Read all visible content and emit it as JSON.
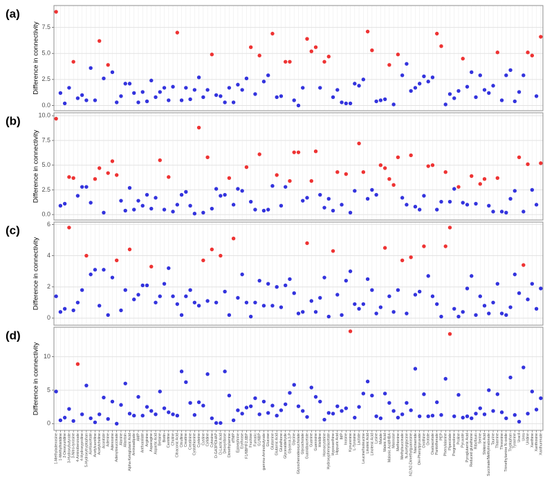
{
  "chart_data": [
    {
      "type": "scatter",
      "panel_label": "(a)",
      "y_label": "Difference in connectivity",
      "grid": true,
      "ylim": [
        -0.5,
        9.6
      ],
      "yticks": [
        {
          "value": 0,
          "label": "0.0"
        },
        {
          "value": 2.5,
          "label": "2.5"
        },
        {
          "value": 5,
          "label": "5.0"
        },
        {
          "value": 7.5,
          "label": "7.5"
        }
      ],
      "values": [
        9.0,
        1.2,
        0.2,
        1.7,
        4.2,
        0.7,
        1.0,
        0.5,
        3.6,
        0.5,
        6.2,
        2.6,
        3.9,
        3.2,
        0.3,
        0.9,
        2.1,
        2.1,
        1.2,
        0.3,
        1.3,
        0.4,
        2.4,
        0.8,
        1.3,
        1.7,
        0.5,
        1.8,
        7.0,
        0.5,
        1.7,
        0.6,
        1.5,
        2.7,
        0.8,
        1.5,
        4.9,
        1.0,
        0.9,
        0.3,
        1.7,
        0.3,
        2.0,
        1.5,
        2.6,
        5.6,
        1.1,
        4.8,
        2.3,
        2.9,
        6.9,
        0.8,
        0.9,
        4.2,
        4.2,
        0.5,
        0.0,
        1.7,
        6.4,
        5.2,
        5.6,
        1.7,
        4.2,
        4.7,
        0.8,
        1.5,
        0.3,
        0.2,
        0.2,
        2.1,
        1.9,
        2.5,
        7.1,
        5.3,
        0.4,
        0.5,
        0.6,
        3.9,
        0.1,
        4.9,
        2.9,
        4.0,
        1.4,
        1.7,
        2.1,
        2.8,
        2.3,
        2.7,
        6.9,
        5.7,
        0.1,
        1.1,
        0.7,
        1.4,
        4.5,
        1.8,
        3.2,
        0.8,
        2.9,
        1.5,
        1.2,
        1.9,
        5.1,
        0.5,
        2.9,
        3.4,
        0.4,
        1.3,
        2.9,
        5.1,
        4.8,
        0.9,
        6.6
      ],
      "colors": [
        "#e33",
        "#33d",
        "#33d",
        "#33d",
        "#e33",
        "#33d",
        "#33d",
        "#33d",
        "#33d",
        "#33d",
        "#e33",
        "#33d",
        "#e33",
        "#33d",
        "#33d",
        "#33d",
        "#33d",
        "#33d",
        "#33d",
        "#33d",
        "#33d",
        "#33d",
        "#33d",
        "#33d",
        "#33d",
        "#33d",
        "#33d",
        "#33d",
        "#e33",
        "#33d",
        "#33d",
        "#33d",
        "#33d",
        "#33d",
        "#33d",
        "#33d",
        "#e33",
        "#33d",
        "#33d",
        "#33d",
        "#33d",
        "#33d",
        "#33d",
        "#33d",
        "#33d",
        "#e33",
        "#33d",
        "#e33",
        "#33d",
        "#33d",
        "#e33",
        "#33d",
        "#33d",
        "#e33",
        "#e33",
        "#33d",
        "#33d",
        "#33d",
        "#e33",
        "#e33",
        "#e33",
        "#33d",
        "#e33",
        "#e33",
        "#33d",
        "#33d",
        "#33d",
        "#33d",
        "#33d",
        "#33d",
        "#33d",
        "#33d",
        "#e33",
        "#e33",
        "#33d",
        "#33d",
        "#33d",
        "#e33",
        "#33d",
        "#e33",
        "#33d",
        "#33d",
        "#33d",
        "#33d",
        "#33d",
        "#33d",
        "#33d",
        "#33d",
        "#e33",
        "#e33",
        "#33d",
        "#33d",
        "#33d",
        "#33d",
        "#e33",
        "#33d",
        "#33d",
        "#33d",
        "#33d",
        "#33d",
        "#33d",
        "#33d",
        "#e33",
        "#33d",
        "#33d",
        "#33d",
        "#33d",
        "#33d",
        "#33d",
        "#e33",
        "#e33",
        "#33d",
        "#e33"
      ]
    },
    {
      "type": "scatter",
      "panel_label": "(b)",
      "y_label": "Difference in connectivity",
      "grid": true,
      "ylim": [
        -0.55,
        10.3
      ],
      "yticks": [
        {
          "value": 0,
          "label": "0.0"
        },
        {
          "value": 2.5,
          "label": "2.5"
        },
        {
          "value": 5,
          "label": "5.0"
        },
        {
          "value": 7.5,
          "label": "7.5"
        },
        {
          "value": 10,
          "label": "10.0"
        }
      ],
      "values": [
        9.7,
        0.9,
        1.1,
        3.8,
        3.7,
        1.9,
        2.8,
        2.8,
        1.2,
        3.6,
        4.7,
        0.2,
        4.2,
        5.4,
        4.0,
        1.4,
        0.4,
        2.7,
        0.5,
        1.4,
        0.9,
        2.0,
        0.6,
        1.7,
        5.5,
        0.5,
        3.8,
        0.3,
        1.0,
        2.0,
        2.3,
        0.9,
        0.1,
        8.8,
        0.2,
        5.8,
        0.6,
        2.6,
        1.9,
        2.0,
        3.7,
        1.0,
        2.6,
        2.4,
        4.8,
        1.3,
        0.5,
        6.1,
        0.4,
        0.5,
        2.9,
        4.0,
        0.9,
        2.8,
        3.4,
        6.3,
        6.3,
        1.4,
        1.7,
        3.4,
        6.4,
        2.0,
        0.7,
        1.6,
        0.4,
        4.3,
        1.0,
        4.1,
        0.2,
        2.4,
        7.2,
        4.3,
        1.6,
        2.5,
        2.0,
        5.0,
        4.7,
        3.6,
        3.0,
        5.8,
        1.7,
        1.0,
        6.0,
        0.8,
        0.5,
        1.9,
        4.9,
        5.0,
        0.5,
        1.3,
        4.3,
        1.3,
        2.6,
        2.8,
        1.2,
        1.0,
        3.9,
        1.1,
        3.1,
        3.6,
        0.9,
        0.3,
        3.7,
        0.3,
        0.2,
        1.6,
        2.4,
        5.8,
        0.3,
        5.1,
        2.5,
        1.0,
        5.2
      ],
      "colors": [
        "#e33",
        "#33d",
        "#33d",
        "#e33",
        "#e33",
        "#33d",
        "#33d",
        "#33d",
        "#33d",
        "#e33",
        "#e33",
        "#33d",
        "#e33",
        "#e33",
        "#e33",
        "#33d",
        "#33d",
        "#33d",
        "#33d",
        "#33d",
        "#33d",
        "#33d",
        "#33d",
        "#33d",
        "#e33",
        "#33d",
        "#e33",
        "#33d",
        "#33d",
        "#33d",
        "#33d",
        "#33d",
        "#33d",
        "#e33",
        "#33d",
        "#e33",
        "#33d",
        "#33d",
        "#33d",
        "#33d",
        "#e33",
        "#33d",
        "#33d",
        "#33d",
        "#e33",
        "#33d",
        "#33d",
        "#e33",
        "#33d",
        "#33d",
        "#33d",
        "#e33",
        "#33d",
        "#33d",
        "#e33",
        "#e33",
        "#e33",
        "#33d",
        "#33d",
        "#e33",
        "#e33",
        "#33d",
        "#33d",
        "#33d",
        "#33d",
        "#e33",
        "#33d",
        "#e33",
        "#33d",
        "#33d",
        "#e33",
        "#e33",
        "#33d",
        "#33d",
        "#33d",
        "#e33",
        "#e33",
        "#e33",
        "#e33",
        "#e33",
        "#33d",
        "#33d",
        "#e33",
        "#33d",
        "#33d",
        "#33d",
        "#e33",
        "#e33",
        "#33d",
        "#33d",
        "#e33",
        "#33d",
        "#33d",
        "#e33",
        "#33d",
        "#33d",
        "#e33",
        "#33d",
        "#e33",
        "#e33",
        "#33d",
        "#33d",
        "#e33",
        "#33d",
        "#33d",
        "#33d",
        "#33d",
        "#e33",
        "#33d",
        "#e33",
        "#33d",
        "#33d",
        "#e33"
      ]
    },
    {
      "type": "scatter",
      "panel_label": "(c)",
      "y_label": "Difference in connectivity",
      "grid": true,
      "ylim": [
        -0.45,
        6.15
      ],
      "yticks": [
        0,
        2,
        4,
        6
      ],
      "values": [
        1.4,
        0.4,
        0.6,
        5.8,
        0.5,
        1.0,
        1.8,
        4.0,
        2.8,
        3.1,
        0.8,
        3.1,
        0.2,
        2.6,
        3.7,
        0.5,
        1.8,
        4.4,
        1.2,
        1.5,
        2.1,
        2.1,
        3.3,
        1.0,
        1.4,
        2.2,
        3.2,
        1.4,
        0.9,
        0.2,
        1.4,
        1.8,
        1.0,
        0.8,
        3.7,
        1.1,
        4.4,
        1.0,
        4.0,
        1.7,
        0.2,
        5.1,
        1.3,
        2.8,
        1.0,
        0.1,
        1.0,
        2.4,
        0.8,
        2.2,
        0.8,
        2.0,
        0.7,
        2.1,
        2.5,
        1.6,
        0.3,
        0.4,
        4.8,
        1.1,
        0.4,
        1.3,
        2.6,
        0.1,
        4.3,
        1.5,
        0.2,
        2.4,
        3.0,
        0.9,
        0.6,
        0.9,
        2.5,
        1.8,
        0.3,
        0.7,
        4.5,
        1.4,
        0.4,
        1.8,
        3.7,
        0.3,
        3.9,
        1.5,
        1.7,
        4.6,
        2.7,
        1.4,
        0.9,
        0.1,
        4.6,
        5.8,
        0.6,
        0.1,
        0.4,
        1.9,
        2.7,
        0.2,
        1.4,
        0.8,
        0.3,
        1.0,
        2.2,
        0.3,
        0.2,
        0.7,
        2.8,
        1.6,
        3.4,
        1.2,
        2.2,
        0.6,
        1.9
      ],
      "colors": [
        "#33d",
        "#33d",
        "#33d",
        "#e33",
        "#33d",
        "#33d",
        "#33d",
        "#e33",
        "#33d",
        "#33d",
        "#33d",
        "#33d",
        "#33d",
        "#33d",
        "#e33",
        "#33d",
        "#33d",
        "#e33",
        "#33d",
        "#33d",
        "#33d",
        "#33d",
        "#e33",
        "#33d",
        "#33d",
        "#33d",
        "#33d",
        "#33d",
        "#33d",
        "#33d",
        "#33d",
        "#33d",
        "#33d",
        "#33d",
        "#e33",
        "#33d",
        "#e33",
        "#33d",
        "#e33",
        "#33d",
        "#33d",
        "#e33",
        "#33d",
        "#33d",
        "#33d",
        "#33d",
        "#33d",
        "#33d",
        "#33d",
        "#33d",
        "#33d",
        "#33d",
        "#33d",
        "#33d",
        "#33d",
        "#33d",
        "#33d",
        "#33d",
        "#e33",
        "#33d",
        "#33d",
        "#33d",
        "#33d",
        "#33d",
        "#e33",
        "#33d",
        "#33d",
        "#33d",
        "#33d",
        "#33d",
        "#33d",
        "#33d",
        "#33d",
        "#33d",
        "#33d",
        "#33d",
        "#e33",
        "#33d",
        "#33d",
        "#33d",
        "#e33",
        "#33d",
        "#e33",
        "#33d",
        "#33d",
        "#e33",
        "#33d",
        "#33d",
        "#33d",
        "#33d",
        "#e33",
        "#e33",
        "#33d",
        "#33d",
        "#33d",
        "#33d",
        "#33d",
        "#33d",
        "#33d",
        "#33d",
        "#33d",
        "#33d",
        "#33d",
        "#33d",
        "#33d",
        "#33d",
        "#33d",
        "#33d",
        "#e33",
        "#33d",
        "#33d",
        "#33d",
        "#33d"
      ]
    },
    {
      "type": "scatter",
      "panel_label": "(d)",
      "y_label": "Difference in connectivity",
      "grid": true,
      "ylim": [
        -1,
        14.4
      ],
      "yticks": [
        0,
        5,
        10
      ],
      "categories": [
        "1-Methyladenosine",
        "1-Methylhistidine",
        "2-Deoxyuridine",
        "3-Hydroxybutyrate",
        "3-Nitro-tyrosine",
        "4-Aminobenzoate",
        "4-Hydroxyproline",
        "5-Hydroxytryptophan",
        "Acetoacetate",
        "Acetylcarnitine",
        "Acetylcholine",
        "Aconitate",
        "Adenine",
        "Adenosine",
        "Adenylosuccinate",
        "Alanine",
        "Allantoin",
        "Alpha-Ketoglutaric Acid",
        "Aminoadipate",
        "AMP",
        "Anthranilate",
        "Arginine",
        "Asparagine",
        "Aspartic Acid",
        "Betaine",
        "Biotin",
        "Carnitine",
        "Choline",
        "Citraconic Acid",
        "Citrulline",
        "Creatine",
        "Creatinine",
        "Cystathionine",
        "Cysteine",
        "Cystine",
        "Cytidine",
        "Cytosine",
        "D-GA3P/DHAP",
        "D-Lactic Acid",
        "Deoxyribose",
        "Dimethylamine",
        "dTMP",
        "Epinephrine",
        "Erythrose",
        "F1/6BP/F2,6BP",
        "Fructose",
        "Fumaric",
        "G1/6BP",
        "gamma-Aminobutyrate",
        "Glucose",
        "Glutamine",
        "Glutamic Acid",
        "Glutathione",
        "Glyceraldehyde",
        "Glycerol-3-P",
        "Glycine",
        "Glycochenodeoxycholate",
        "Glycocholate",
        "Guanidoacetate",
        "Guanine",
        "Guanosine",
        "Histidine",
        "Homocysteine",
        "Hydroxyphenylacetate",
        "Hypoxanthine",
        "Hippuric Acid",
        "IMP",
        "Inosine",
        "Kynurenine",
        "L-Tyrosine",
        "Lactate",
        "Leucine/Isoleucine",
        "Linoleic Acid",
        "Linolenic Acid",
        "Lysine",
        "Malate",
        "Maleic Acid",
        "Malonic Acid/HBA",
        "Mannose",
        "Methionine",
        "Methylsuccinate",
        "N-Acetylglycine",
        "N2,N2-Dimethylguanosine",
        "Niacinamide",
        "OH-Phenylpyruvate",
        "Ornithine",
        "Orotate",
        "Oxaloacetate",
        "Pantothenate",
        "PEP",
        "Phenylalanine",
        "Pipecolate",
        "Pregnenolone",
        "Proline",
        "Pyruvate",
        "Pyroglutamic Acid",
        "Reduced glutathione",
        "Riboflavin",
        "Serine",
        "Shikimic Acid",
        "Succinate/Methylmalonate",
        "Taurine",
        "Thiamine",
        "Threonine",
        "Trimethylamine N-oxide",
        "Tryptophan",
        "Tyramine",
        "Uracil",
        "Urea",
        "Uridine",
        "Xanthine",
        "Xanthosine",
        "Xanthurenate"
      ],
      "values": [
        4.8,
        0.5,
        0.9,
        2.2,
        0.4,
        8.9,
        1.4,
        5.7,
        0.8,
        0.2,
        1.4,
        3.9,
        0.7,
        3.3,
        0.0,
        2.8,
        6.0,
        1.5,
        1.2,
        4.0,
        1.2,
        2.5,
        1.9,
        1.4,
        4.8,
        2.3,
        1.7,
        1.4,
        1.2,
        7.8,
        6.2,
        3.1,
        1.3,
        3.2,
        2.7,
        7.4,
        0.8,
        0.1,
        0.1,
        7.8,
        4.2,
        0.5,
        2.0,
        1.5,
        2.4,
        2.6,
        3.8,
        1.4,
        3.3,
        1.6,
        2.7,
        1.2,
        2.0,
        2.9,
        4.6,
        5.8,
        2.6,
        1.9,
        1.0,
        5.4,
        4.0,
        3.3,
        0.6,
        1.6,
        1.5,
        2.6,
        1.9,
        2.3,
        13.8,
        0.9,
        2.5,
        4.5,
        6.3,
        4.2,
        1.1,
        0.8,
        4.5,
        3.1,
        1.9,
        0.9,
        1.4,
        3.1,
        2.0,
        8.2,
        1.1,
        4.4,
        1.1,
        1.2,
        3.2,
        1.3,
        6.7,
        13.4,
        1.1,
        4.3,
        0.9,
        1.1,
        0.8,
        1.5,
        2.3,
        1.4,
        5.0,
        1.9,
        4.4,
        1.7,
        0.8,
        6.9,
        1.3,
        0.3,
        8.4,
        1.5,
        4.8,
        2.1,
        3.8
      ],
      "colors": [
        "#33d",
        "#33d",
        "#33d",
        "#33d",
        "#33d",
        "#e33",
        "#33d",
        "#33d",
        "#33d",
        "#33d",
        "#33d",
        "#33d",
        "#33d",
        "#33d",
        "#33d",
        "#33d",
        "#33d",
        "#33d",
        "#33d",
        "#33d",
        "#33d",
        "#33d",
        "#33d",
        "#33d",
        "#33d",
        "#33d",
        "#33d",
        "#33d",
        "#33d",
        "#33d",
        "#33d",
        "#33d",
        "#33d",
        "#33d",
        "#33d",
        "#33d",
        "#33d",
        "#33d",
        "#33d",
        "#33d",
        "#33d",
        "#33d",
        "#33d",
        "#33d",
        "#33d",
        "#33d",
        "#33d",
        "#33d",
        "#33d",
        "#33d",
        "#33d",
        "#33d",
        "#33d",
        "#33d",
        "#33d",
        "#33d",
        "#33d",
        "#33d",
        "#33d",
        "#33d",
        "#33d",
        "#33d",
        "#33d",
        "#33d",
        "#33d",
        "#33d",
        "#33d",
        "#33d",
        "#e33",
        "#33d",
        "#33d",
        "#33d",
        "#33d",
        "#33d",
        "#33d",
        "#33d",
        "#33d",
        "#33d",
        "#33d",
        "#33d",
        "#33d",
        "#33d",
        "#33d",
        "#33d",
        "#33d",
        "#33d",
        "#33d",
        "#33d",
        "#33d",
        "#33d",
        "#33d",
        "#e33",
        "#33d",
        "#33d",
        "#33d",
        "#33d",
        "#33d",
        "#33d",
        "#33d",
        "#33d",
        "#33d",
        "#33d",
        "#33d",
        "#33d",
        "#33d",
        "#33d",
        "#33d",
        "#33d",
        "#33d",
        "#33d",
        "#33d",
        "#33d",
        "#33d"
      ]
    }
  ]
}
